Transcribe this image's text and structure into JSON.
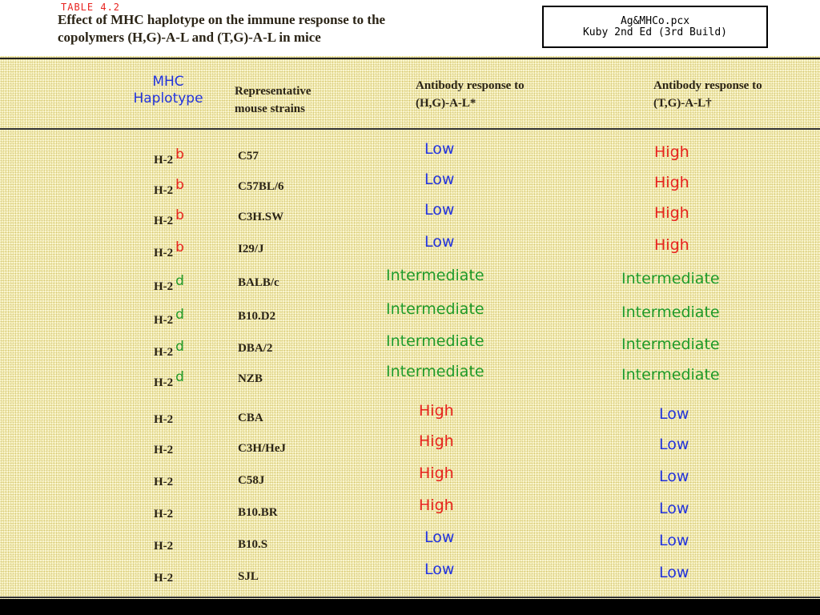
{
  "table_number": "TABLE 4.2",
  "title_line1": "Effect of MHC haplotype on the immune response to the",
  "title_line2": "copolymers (H,G)-A-L and (T,G)-A-L in mice",
  "file_label_line1": "Ag&MHCo.pcx",
  "file_label_line2": "Kuby 2nd Ed (3rd Build)",
  "headers": {
    "mhc_line1": "MHC",
    "mhc_line2": "Haplotype",
    "strain_line1": "Representative",
    "strain_line2": "mouse strains",
    "hg_line1": "Antibody response to",
    "hg_line2": "(H,G)-A-L*",
    "tg_line1": "Antibody response to",
    "tg_line2": "(T,G)-A-L†"
  },
  "rows": [
    {
      "haplotype": "H-2",
      "allele": "b",
      "strain": "C57",
      "hg": "Low",
      "tg": "High"
    },
    {
      "haplotype": "H-2",
      "allele": "b",
      "strain": "C57BL/6",
      "hg": "Low",
      "tg": "High"
    },
    {
      "haplotype": "H-2",
      "allele": "b",
      "strain": "C3H.SW",
      "hg": "Low",
      "tg": "High"
    },
    {
      "haplotype": "H-2",
      "allele": "b",
      "strain": "I29/J",
      "hg": "Low",
      "tg": "High"
    },
    {
      "haplotype": "H-2",
      "allele": "d",
      "strain": "BALB/c",
      "hg": "Intermediate",
      "tg": "Intermediate"
    },
    {
      "haplotype": "H-2",
      "allele": "d",
      "strain": "B10.D2",
      "hg": "Intermediate",
      "tg": "Intermediate"
    },
    {
      "haplotype": "H-2",
      "allele": "d",
      "strain": "DBA/2",
      "hg": "Intermediate",
      "tg": "Intermediate"
    },
    {
      "haplotype": "H-2",
      "allele": "d",
      "strain": "NZB",
      "hg": "Intermediate",
      "tg": "Intermediate"
    },
    {
      "haplotype": "H-2",
      "allele": "",
      "strain": "CBA",
      "hg": "High",
      "tg": "Low"
    },
    {
      "haplotype": "H-2",
      "allele": "",
      "strain": "C3H/HeJ",
      "hg": "High",
      "tg": "Low"
    },
    {
      "haplotype": "H-2",
      "allele": "",
      "strain": "C58J",
      "hg": "High",
      "tg": "Low"
    },
    {
      "haplotype": "H-2",
      "allele": "",
      "strain": "B10.BR",
      "hg": "High",
      "tg": "Low"
    },
    {
      "haplotype": "H-2",
      "allele": "",
      "strain": "B10.S",
      "hg": "Low",
      "tg": "Low"
    },
    {
      "haplotype": "H-2",
      "allele": "",
      "strain": "SJL",
      "hg": "Low",
      "tg": "Low"
    }
  ]
}
